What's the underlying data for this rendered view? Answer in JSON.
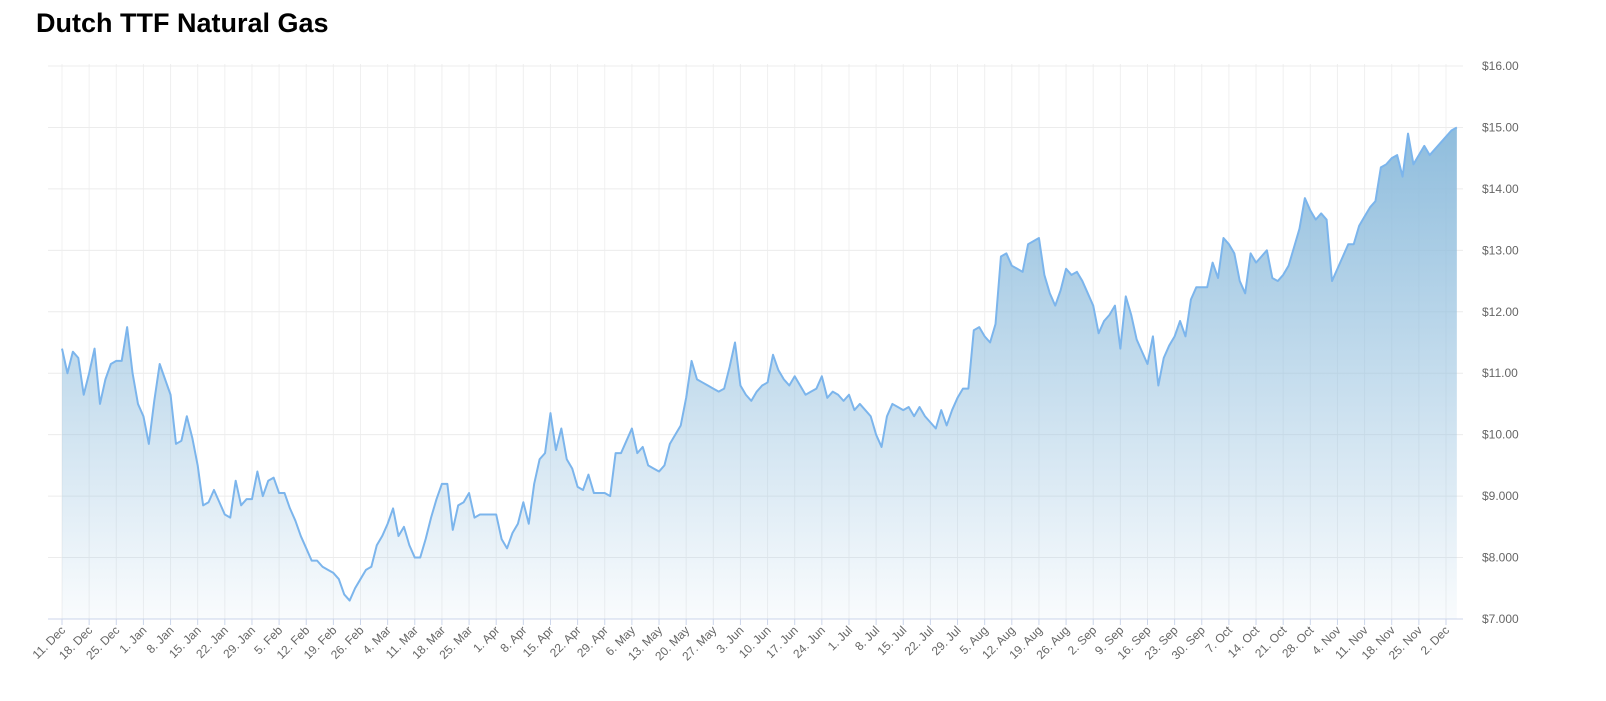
{
  "chart_data": {
    "type": "area",
    "title": "Dutch TTF Natural Gas",
    "categories": [
      "11. Dec",
      null,
      null,
      null,
      null,
      "18. Dec",
      null,
      null,
      null,
      null,
      "25. Dec",
      null,
      null,
      null,
      null,
      "1. Jan",
      null,
      null,
      null,
      null,
      "8. Jan",
      null,
      null,
      null,
      null,
      "15. Jan",
      null,
      null,
      null,
      null,
      "22. Jan",
      null,
      null,
      null,
      null,
      "29. Jan",
      null,
      null,
      null,
      null,
      "5. Feb",
      null,
      null,
      null,
      null,
      "12. Feb",
      null,
      null,
      null,
      null,
      "19. Feb",
      null,
      null,
      null,
      null,
      "26. Feb",
      null,
      null,
      null,
      null,
      "4. Mar",
      null,
      null,
      null,
      null,
      "11. Mar",
      null,
      null,
      null,
      null,
      "18. Mar",
      null,
      null,
      null,
      null,
      "25. Mar",
      null,
      null,
      null,
      null,
      "1. Apr",
      null,
      null,
      null,
      null,
      "8. Apr",
      null,
      null,
      null,
      null,
      "15. Apr",
      null,
      null,
      null,
      null,
      "22. Apr",
      null,
      null,
      null,
      null,
      "29. Apr",
      null,
      null,
      null,
      null,
      "6. May",
      null,
      null,
      null,
      null,
      "13. May",
      null,
      null,
      null,
      null,
      "20. May",
      null,
      null,
      null,
      null,
      "27. May",
      null,
      null,
      null,
      null,
      "3. Jun",
      null,
      null,
      null,
      null,
      "10. Jun",
      null,
      null,
      null,
      null,
      "17. Jun",
      null,
      null,
      null,
      null,
      "24. Jun",
      null,
      null,
      null,
      null,
      "1. Jul",
      null,
      null,
      null,
      null,
      "8. Jul",
      null,
      null,
      null,
      null,
      "15. Jul",
      null,
      null,
      null,
      null,
      "22. Jul",
      null,
      null,
      null,
      null,
      "29. Jul",
      null,
      null,
      null,
      null,
      "5. Aug",
      null,
      null,
      null,
      null,
      "12. Aug",
      null,
      null,
      null,
      null,
      "19. Aug",
      null,
      null,
      null,
      null,
      "26. Aug",
      null,
      null,
      null,
      null,
      "2. Sep",
      null,
      null,
      null,
      null,
      "9. Sep",
      null,
      null,
      null,
      null,
      "16. Sep",
      null,
      null,
      null,
      null,
      "23. Sep",
      null,
      null,
      null,
      null,
      "30. Sep",
      null,
      null,
      null,
      null,
      "7. Oct",
      null,
      null,
      null,
      null,
      "14. Oct",
      null,
      null,
      null,
      null,
      "21. Oct",
      null,
      null,
      null,
      null,
      "28. Oct",
      null,
      null,
      null,
      null,
      "4. Nov",
      null,
      null,
      null,
      null,
      "11. Nov",
      null,
      null,
      null,
      null,
      "18. Nov",
      null,
      null,
      null,
      null,
      "25. Nov",
      null,
      null,
      null,
      null,
      "2. Dec",
      null,
      null
    ],
    "values": [
      11.4,
      11.0,
      11.35,
      11.25,
      10.65,
      11.0,
      11.4,
      10.5,
      10.9,
      11.15,
      11.2,
      11.2,
      11.75,
      11.0,
      10.5,
      10.3,
      9.85,
      10.55,
      11.15,
      10.9,
      10.65,
      9.85,
      9.9,
      10.3,
      9.95,
      9.5,
      8.85,
      8.9,
      9.1,
      8.9,
      8.7,
      8.65,
      9.25,
      8.85,
      8.95,
      8.95,
      9.4,
      9.0,
      9.25,
      9.3,
      9.05,
      9.05,
      8.8,
      8.6,
      8.35,
      8.15,
      7.95,
      7.95,
      7.85,
      7.8,
      7.75,
      7.65,
      7.4,
      7.3,
      7.5,
      7.65,
      7.8,
      7.85,
      8.2,
      8.35,
      8.55,
      8.8,
      8.35,
      8.5,
      8.2,
      8.0,
      8.0,
      8.3,
      8.65,
      8.95,
      9.2,
      9.2,
      8.45,
      8.85,
      8.9,
      9.05,
      8.65,
      8.7,
      8.7,
      8.7,
      8.7,
      8.3,
      8.15,
      8.4,
      8.55,
      8.9,
      8.55,
      9.2,
      9.6,
      9.7,
      10.35,
      9.75,
      10.1,
      9.6,
      9.45,
      9.15,
      9.1,
      9.35,
      9.05,
      9.05,
      9.05,
      9.0,
      9.7,
      9.7,
      9.9,
      10.1,
      9.7,
      9.8,
      9.5,
      9.45,
      9.4,
      9.5,
      9.85,
      10.0,
      10.15,
      10.6,
      11.2,
      10.9,
      10.85,
      10.8,
      10.75,
      10.7,
      10.75,
      11.1,
      11.5,
      10.8,
      10.65,
      10.55,
      10.7,
      10.8,
      10.85,
      11.3,
      11.05,
      10.9,
      10.8,
      10.95,
      10.8,
      10.65,
      10.7,
      10.75,
      10.95,
      10.6,
      10.7,
      10.65,
      10.55,
      10.65,
      10.4,
      10.5,
      10.4,
      10.3,
      10.0,
      9.8,
      10.3,
      10.5,
      10.45,
      10.4,
      10.45,
      10.3,
      10.45,
      10.3,
      10.2,
      10.1,
      10.4,
      10.15,
      10.4,
      10.6,
      10.75,
      10.75,
      11.7,
      11.75,
      11.6,
      11.5,
      11.8,
      12.9,
      12.95,
      12.75,
      12.7,
      12.65,
      13.1,
      13.15,
      13.2,
      12.6,
      12.3,
      12.1,
      12.35,
      12.7,
      12.6,
      12.65,
      12.5,
      12.3,
      12.1,
      11.65,
      11.85,
      11.95,
      12.1,
      11.4,
      12.25,
      11.95,
      11.55,
      11.35,
      11.15,
      11.6,
      10.8,
      11.25,
      11.45,
      11.6,
      11.85,
      11.6,
      12.2,
      12.4,
      12.4,
      12.4,
      12.8,
      12.55,
      13.2,
      13.1,
      12.95,
      12.5,
      12.3,
      12.95,
      12.8,
      12.9,
      13.0,
      12.55,
      12.5,
      12.6,
      12.75,
      13.05,
      13.35,
      13.85,
      13.65,
      13.5,
      13.6,
      13.5,
      12.5,
      12.7,
      12.9,
      13.1,
      13.1,
      13.4,
      13.55,
      13.7,
      13.8,
      14.35,
      14.4,
      14.5,
      14.55,
      14.2,
      14.9,
      14.4,
      14.55,
      14.7,
      14.55,
      14.65,
      14.75,
      14.85,
      14.95,
      15.0
    ],
    "color": "#7cb5ec",
    "ylim": [
      7,
      16
    ],
    "yticks": [
      {
        "value": 7,
        "label": "$7.000"
      },
      {
        "value": 8,
        "label": "$8.000"
      },
      {
        "value": 9,
        "label": "$9.000"
      },
      {
        "value": 10,
        "label": "$10.00"
      },
      {
        "value": 11,
        "label": "$11.00"
      },
      {
        "value": 12,
        "label": "$12.00"
      },
      {
        "value": 13,
        "label": "$13.00"
      },
      {
        "value": 14,
        "label": "$14.00"
      },
      {
        "value": 15,
        "label": "$15.00"
      },
      {
        "value": 16,
        "label": "$16.00"
      }
    ],
    "grid": true
  }
}
